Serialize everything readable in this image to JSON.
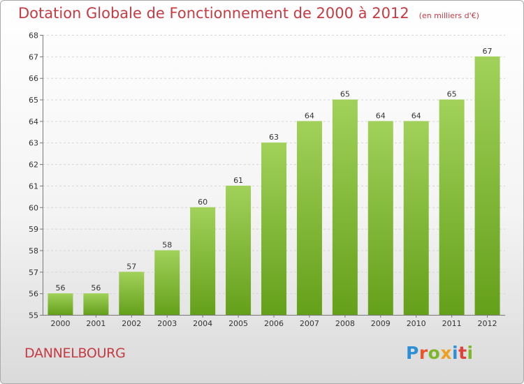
{
  "header": {
    "title": "Dotation Globale de Fonctionnement de 2000 à 2012",
    "unit": "(en milliers d'€)"
  },
  "footer": {
    "commune": "DANNELBOURG",
    "brand": "Proxiti",
    "brand_colors": [
      "#2e8ed6",
      "#e8572c",
      "#7fb72b",
      "#f0a020",
      "#2e8ed6",
      "#e0413a",
      "#7fb72b"
    ]
  },
  "colors": {
    "accent": "#c43b43",
    "bar_light": "#a1d15a",
    "bar_dark": "#64a01a"
  },
  "chart_data": {
    "type": "bar",
    "title": "Dotation Globale de Fonctionnement de 2000 à 2012",
    "subtitle": "(en milliers d'€)",
    "xlabel": "",
    "ylabel": "",
    "categories": [
      "2000",
      "2001",
      "2002",
      "2003",
      "2004",
      "2005",
      "2006",
      "2007",
      "2008",
      "2009",
      "2010",
      "2011",
      "2012"
    ],
    "values": [
      56,
      56,
      57,
      58,
      60,
      61,
      63,
      64,
      65,
      64,
      64,
      65,
      67
    ],
    "ylim": [
      55,
      68
    ],
    "yticks": [
      55,
      56,
      57,
      58,
      59,
      60,
      61,
      62,
      63,
      64,
      65,
      66,
      67,
      68
    ],
    "grid": true,
    "data_labels": true
  }
}
